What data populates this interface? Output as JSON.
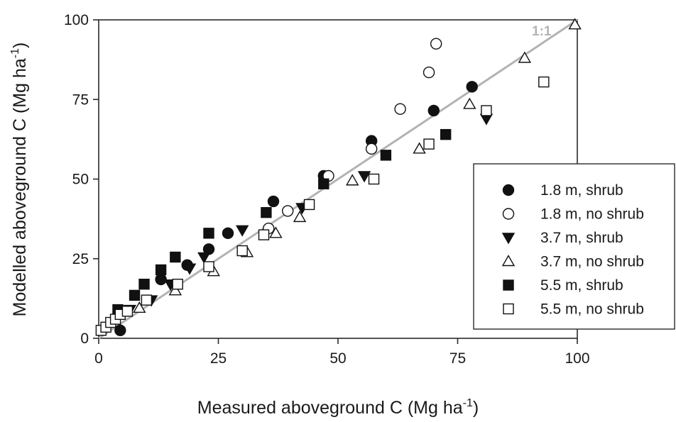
{
  "chart_data": {
    "type": "scatter",
    "xlabel": "Measured aboveground C (Mg ha",
    "xlabel_sup": "-1",
    "xlabel_end": ")",
    "ylabel": "Modelled aboveground C (Mg ha",
    "ylabel_sup": "-1",
    "ylabel_end": ")",
    "xlim": [
      0,
      100
    ],
    "ylim": [
      0,
      100
    ],
    "xticks": [
      "0",
      "25",
      "50",
      "75",
      "100"
    ],
    "yticks": [
      "0",
      "25",
      "50",
      "75",
      "100"
    ],
    "grid": false,
    "legend_position": "right",
    "reference_line": {
      "label": "1:1",
      "from": [
        0,
        0
      ],
      "to": [
        100,
        100
      ],
      "color": "#b3b3b3"
    },
    "series": [
      {
        "name": "1.8 m, shrub",
        "marker": "circle",
        "filled": true,
        "points": [
          [
            4.5,
            2.5
          ],
          [
            13,
            18.5
          ],
          [
            18.5,
            23
          ],
          [
            23,
            28
          ],
          [
            27,
            33
          ],
          [
            36.5,
            43
          ],
          [
            47,
            51
          ],
          [
            57,
            62
          ],
          [
            70,
            71.5
          ],
          [
            78,
            79
          ]
        ]
      },
      {
        "name": "1.8 m, no shrub",
        "marker": "circle",
        "filled": false,
        "points": [
          [
            35.5,
            34.5
          ],
          [
            39.5,
            40
          ],
          [
            48,
            51
          ],
          [
            57,
            59.5
          ],
          [
            63,
            72
          ],
          [
            69,
            83.5
          ],
          [
            70.5,
            92.5
          ]
        ]
      },
      {
        "name": "3.7 m, shrub",
        "marker": "triangle-down",
        "filled": true,
        "points": [
          [
            6.5,
            9
          ],
          [
            11,
            12
          ],
          [
            15,
            17
          ],
          [
            19,
            22
          ],
          [
            22,
            25.5
          ],
          [
            30,
            34
          ],
          [
            42.5,
            41
          ],
          [
            55.5,
            51
          ],
          [
            81,
            69
          ]
        ]
      },
      {
        "name": "3.7 m, no shrub",
        "marker": "triangle-up",
        "filled": false,
        "points": [
          [
            8.5,
            9.5
          ],
          [
            16,
            15
          ],
          [
            24,
            21
          ],
          [
            31,
            27
          ],
          [
            37,
            33
          ],
          [
            42,
            38
          ],
          [
            53,
            49.5
          ],
          [
            67,
            59.5
          ],
          [
            77.5,
            73.5
          ],
          [
            89,
            88
          ],
          [
            99.5,
            98.5
          ]
        ]
      },
      {
        "name": "5.5 m, shrub",
        "marker": "square",
        "filled": true,
        "points": [
          [
            4,
            9
          ],
          [
            7.5,
            13.5
          ],
          [
            9.5,
            17
          ],
          [
            13,
            21.5
          ],
          [
            16,
            25.5
          ],
          [
            23,
            33
          ],
          [
            35,
            39.5
          ],
          [
            47,
            48.5
          ],
          [
            60,
            57.5
          ],
          [
            72.5,
            64
          ]
        ]
      },
      {
        "name": "5.5 m, no shrub",
        "marker": "square",
        "filled": false,
        "points": [
          [
            0.5,
            2.5
          ],
          [
            1.5,
            3.5
          ],
          [
            2.5,
            5
          ],
          [
            3.5,
            6
          ],
          [
            4.5,
            7.5
          ],
          [
            6,
            8.5
          ],
          [
            10,
            12
          ],
          [
            16.5,
            17
          ],
          [
            23,
            22.5
          ],
          [
            30,
            27.5
          ],
          [
            34.5,
            32.5
          ],
          [
            44,
            42
          ],
          [
            57.5,
            50
          ],
          [
            69,
            61
          ],
          [
            81,
            71.5
          ],
          [
            93,
            80.5
          ]
        ]
      }
    ]
  }
}
